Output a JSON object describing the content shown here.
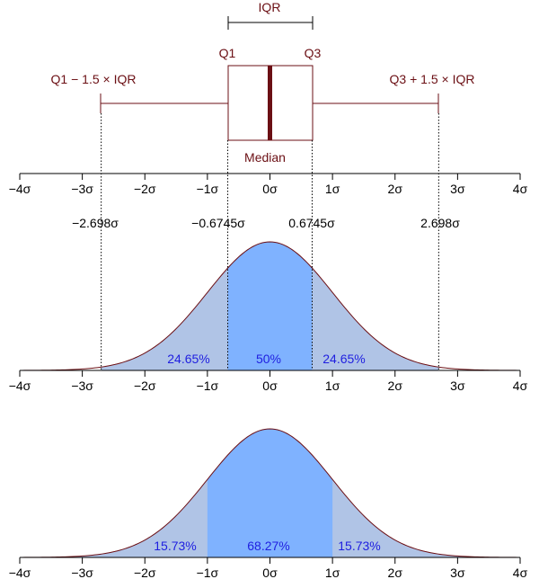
{
  "box_labels": {
    "iqr": "IQR",
    "q1": "Q1",
    "q3": "Q3",
    "median": "Median",
    "lower_fence": "Q1 − 1.5 × IQR",
    "upper_fence": "Q3 + 1.5 × IQR"
  },
  "sigma_labels": {
    "neg_fence": "−2.698σ",
    "neg_q": "−0.6745σ",
    "pos_q": "0.6745σ",
    "pos_fence": "2.698σ"
  },
  "axis_ticks": [
    "−4σ",
    "−3σ",
    "−2σ",
    "−1σ",
    "0σ",
    "1σ",
    "2σ",
    "3σ",
    "4σ"
  ],
  "middle_curve": {
    "left": "24.65%",
    "center": "50%",
    "right": "24.65%"
  },
  "bottom_curve": {
    "left": "15.73%",
    "center": "68.27%",
    "right": "15.73%"
  },
  "colors": {
    "outline": "#6b0f14",
    "light_fill": "#b0c4e6",
    "dark_fill": "#7fb2ff",
    "percent_text": "#1f1fe0"
  },
  "chart_data": {
    "type": "area",
    "distribution": "standard normal",
    "xlim": [
      -4,
      4
    ],
    "quartiles": [
      -0.6745,
      0,
      0.6745
    ],
    "fences": [
      -2.698,
      2.698
    ],
    "regions_middle": [
      {
        "from": -2.698,
        "to": -0.6745,
        "value": 24.65
      },
      {
        "from": -0.6745,
        "to": 0.6745,
        "value": 50
      },
      {
        "from": 0.6745,
        "to": 2.698,
        "value": 24.65
      }
    ],
    "regions_bottom": [
      {
        "from": -4,
        "to": -1,
        "value": 15.73
      },
      {
        "from": -1,
        "to": 1,
        "value": 68.27
      },
      {
        "from": 1,
        "to": 4,
        "value": 15.73
      }
    ]
  }
}
